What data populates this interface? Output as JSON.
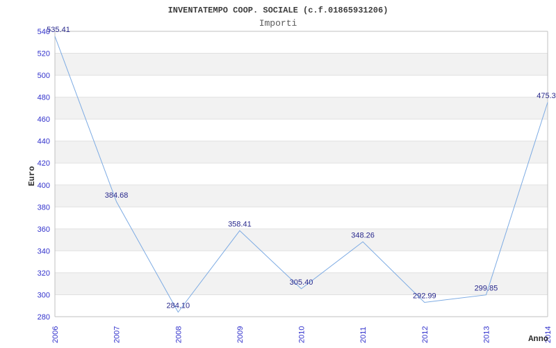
{
  "header": {
    "title": "INVENTATEMPO COOP. SOCIALE (c.f.01865931206)",
    "subtitle": "Importi"
  },
  "chart_data": {
    "type": "line",
    "title": "INVENTATEMPO COOP. SOCIALE (c.f.01865931206)",
    "subtitle": "Importi",
    "xlabel": "Anno",
    "ylabel": "Euro",
    "categories": [
      "2006",
      "2007",
      "2008",
      "2009",
      "2010",
      "2011",
      "2012",
      "2013",
      "2014"
    ],
    "series": [
      {
        "name": "Importi",
        "values": [
          535.41,
          384.68,
          284.1,
          358.41,
          305.4,
          348.26,
          292.99,
          299.85,
          475.3
        ],
        "point_labels": [
          "535.41",
          "384.68",
          "284.10",
          "358.41",
          "305.40",
          "348.26",
          "292.99",
          "299.85",
          "475.3"
        ]
      }
    ],
    "ylim": [
      280,
      540
    ],
    "ytick_step": 20,
    "ytick_labels": [
      "280",
      "300",
      "320",
      "340",
      "360",
      "380",
      "400",
      "420",
      "440",
      "460",
      "480",
      "500",
      "520",
      "540"
    ],
    "grid": "horizontal-alternating-bands",
    "legend": "none",
    "colors": {
      "line": "#7dabe3",
      "point_label": "#28288c",
      "tick_label": "#3232cc",
      "band": "#f2f2f2",
      "gridline": "#e0e0e0",
      "frame": "#c0c0c0",
      "axis_title": "#2e2e2e",
      "background": "#ffffff"
    }
  }
}
